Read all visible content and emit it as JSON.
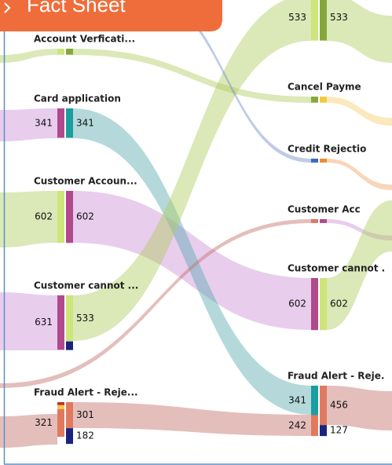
{
  "tab": "Fact Sheet",
  "chart_data": {
    "type": "sankey",
    "nodes": [
      {
        "column": 0,
        "label": "Account Verficati...",
        "left": [
          {
            "value": 70,
            "color": "#cde57a",
            "printed": false
          }
        ],
        "right": [
          {
            "value": 70,
            "color": "#86a83a",
            "printed": false
          }
        ]
      },
      {
        "column": 0,
        "label": "Card application",
        "left": [
          {
            "value": 341,
            "color": "#b04a8c"
          }
        ],
        "right": [
          {
            "value": 341,
            "color": "#1a9ea0"
          }
        ]
      },
      {
        "column": 0,
        "label": "Customer Accoun...",
        "left": [
          {
            "value": 602,
            "color": "#cde57a"
          }
        ],
        "right": [
          {
            "value": 602,
            "color": "#b04a8c"
          }
        ]
      },
      {
        "column": 0,
        "label": "Customer cannot ...",
        "left": [
          {
            "value": 631,
            "color": "#b04a8c"
          }
        ],
        "right": [
          {
            "value": 533,
            "color": "#cde57a"
          },
          {
            "value": 100,
            "color": "#1a237e",
            "printed": false
          }
        ]
      },
      {
        "column": 0,
        "label": "Fraud Alert - Reje...",
        "left": [
          {
            "value": 35,
            "color": "#c0302a",
            "printed": false
          },
          {
            "value": 45,
            "color": "#f5c842",
            "printed": false
          },
          {
            "value": 321,
            "color": "#e07a5f"
          }
        ],
        "right": [
          {
            "value": 301,
            "color": "#e07a5f"
          },
          {
            "value": 182,
            "color": "#1a237e"
          }
        ]
      },
      {
        "column": 1,
        "left": [
          {
            "value": 533,
            "color": "#cde57a"
          }
        ],
        "right": [
          {
            "value": 533,
            "color": "#86a83a"
          }
        ]
      },
      {
        "column": 1,
        "label": "Cancel Payme",
        "left": [
          {
            "value": 70,
            "color": "#86a83a",
            "printed": false
          }
        ],
        "right": [
          {
            "value": 70,
            "color": "#f5c842",
            "printed": false
          }
        ]
      },
      {
        "column": 1,
        "label": "Credit Rejectio",
        "left": [
          {
            "value": 45,
            "color": "#3a6bc4",
            "printed": false
          }
        ],
        "right": [
          {
            "value": 45,
            "color": "#f08a30",
            "printed": false
          }
        ]
      },
      {
        "column": 1,
        "label": "Customer Acc",
        "left": [
          {
            "value": 45,
            "color": "#e07a5f",
            "printed": false
          }
        ],
        "right": [
          {
            "value": 45,
            "color": "#b04a8c",
            "printed": false
          }
        ]
      },
      {
        "column": 1,
        "label": "Customer cannot .",
        "left": [
          {
            "value": 602,
            "color": "#b04a8c"
          }
        ],
        "right": [
          {
            "value": 602,
            "color": "#cde57a"
          }
        ]
      },
      {
        "column": 1,
        "label": "Fraud Alert - Reje.",
        "left": [
          {
            "value": 341,
            "color": "#1a9ea0"
          },
          {
            "value": 242,
            "color": "#e07a5f"
          }
        ],
        "right": [
          {
            "value": 456,
            "color": "#e07a5f"
          },
          {
            "value": 127,
            "color": "#1a237e"
          }
        ]
      }
    ]
  }
}
